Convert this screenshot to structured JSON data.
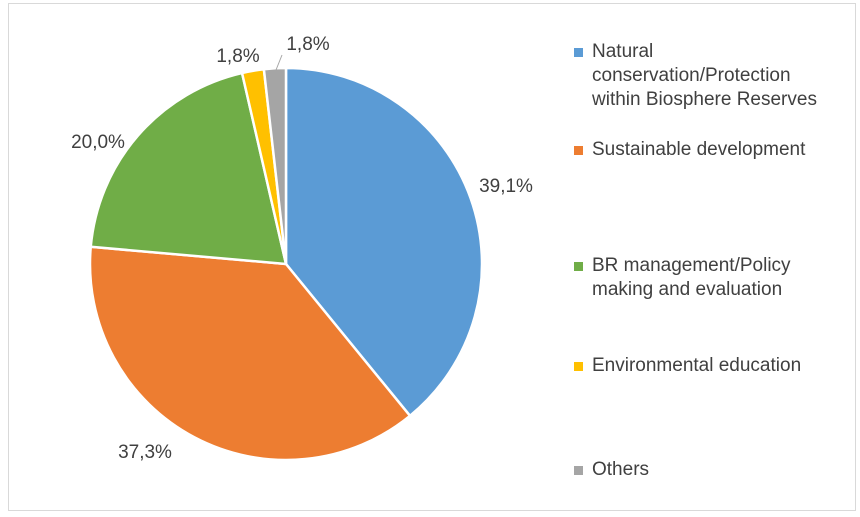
{
  "chart_data": {
    "type": "pie",
    "title": "",
    "slices": [
      {
        "label": "Natural conservation/Protection within Biosphere Reserves",
        "value": 39.1,
        "display": "39,1%",
        "color": "#5b9bd5"
      },
      {
        "label": "Sustainable development",
        "value": 37.3,
        "display": "37,3%",
        "color": "#ed7d31"
      },
      {
        "label": "BR management/Policy making and evaluation",
        "value": 20.0,
        "display": "20,0%",
        "color": "#70ad47"
      },
      {
        "label": "Environmental education",
        "value": 1.8,
        "display": "1,8%",
        "color": "#ffc000"
      },
      {
        "label": "Others",
        "value": 1.8,
        "display": "1,8%",
        "color": "#a5a5a5"
      }
    ],
    "legend_position": "right"
  },
  "legend": {
    "items": [
      {
        "lines": [
          "Natural",
          "conservation/Protection",
          "within Biosphere Reserves"
        ],
        "color": "#5b9bd5"
      },
      {
        "lines": [
          "Sustainable development"
        ],
        "color": "#ed7d31"
      },
      {
        "lines": [
          "BR management/Policy",
          "making and evaluation"
        ],
        "color": "#70ad47"
      },
      {
        "lines": [
          "Environmental education"
        ],
        "color": "#ffc000"
      },
      {
        "lines": [
          "Others"
        ],
        "color": "#a5a5a5"
      }
    ]
  }
}
